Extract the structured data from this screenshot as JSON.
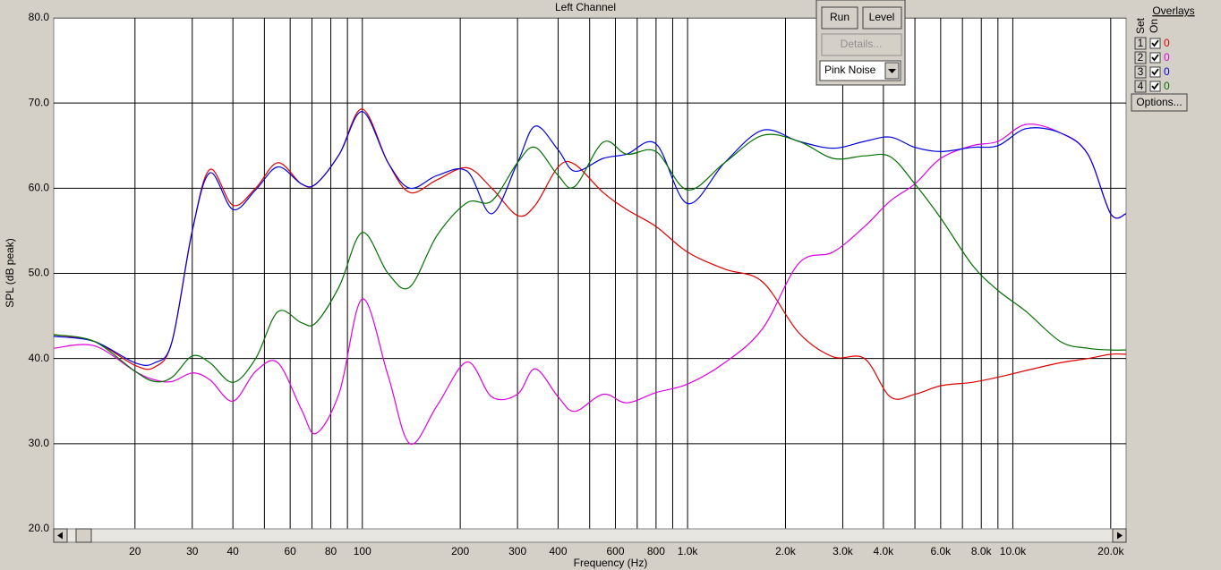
{
  "chart_data": {
    "type": "line",
    "title": "Left Channel",
    "x_label": "Frequency (Hz)",
    "y_label": "SPL (dB peak)",
    "x_scale": "log",
    "grid": true,
    "xlim": [
      11.25,
      22300
    ],
    "ylim": [
      20,
      80
    ],
    "xticks": [
      20,
      30,
      40,
      60,
      80,
      100,
      200,
      300,
      400,
      600,
      800,
      {
        "value": 1000,
        "label": "1.0k"
      },
      {
        "value": 2000,
        "label": "2.0k"
      },
      {
        "value": 3000,
        "label": "3.0k"
      },
      {
        "value": 4000,
        "label": "4.0k"
      },
      {
        "value": 6000,
        "label": "6.0k"
      },
      {
        "value": 8000,
        "label": "8.0k"
      },
      {
        "value": 10000,
        "label": "10.0k"
      },
      {
        "value": 20000,
        "label": "20.0k"
      }
    ],
    "xminor": [
      50,
      70,
      90,
      500,
      700,
      900,
      5000,
      7000,
      9000
    ],
    "yticks": [
      {
        "value": 20,
        "label": "20.0"
      },
      {
        "value": 30,
        "label": "30.0"
      },
      {
        "value": 40,
        "label": "40.0"
      },
      {
        "value": 50,
        "label": "50.0"
      },
      {
        "value": 60,
        "label": "60.0"
      },
      {
        "value": 70,
        "label": "70.0"
      },
      {
        "value": 80,
        "label": "80.0"
      }
    ],
    "x": [
      11.25,
      15,
      20,
      23,
      26,
      30,
      34,
      40,
      47,
      55,
      65,
      72,
      85,
      100,
      120,
      140,
      170,
      210,
      250,
      300,
      340,
      400,
      450,
      550,
      650,
      800,
      1000,
      1300,
      1700,
      2200,
      2800,
      3500,
      4200,
      5000,
      6000,
      7500,
      9000,
      11000,
      14000,
      17000,
      20000,
      22300
    ],
    "series": [
      {
        "color": "#e00000",
        "values": [
          42.8,
          42,
          39.2,
          39,
          42,
          55,
          62.2,
          58,
          60,
          63,
          60.5,
          60.5,
          64,
          69.3,
          63,
          59.5,
          61,
          62.4,
          60,
          56.8,
          58,
          62.5,
          62.8,
          59.5,
          57.5,
          55.5,
          52.5,
          50.5,
          49,
          43,
          40.2,
          40,
          35.5,
          35.8,
          36.8,
          37.2,
          37.8,
          38.6,
          39.5,
          40,
          40.5,
          40.5
        ]
      },
      {
        "color": "#e000e0",
        "values": [
          41.2,
          41.5,
          38.5,
          37.5,
          37.3,
          38.3,
          37.5,
          35,
          38.5,
          39.5,
          34,
          31.2,
          36,
          47,
          38,
          30,
          34.5,
          39.6,
          35.5,
          35.8,
          38.8,
          35.5,
          33.8,
          35.8,
          34.8,
          36,
          37,
          39.5,
          43.5,
          51.2,
          52.5,
          55.5,
          58.5,
          60.5,
          63.5,
          65,
          65.5,
          67.5,
          66.5,
          64,
          57,
          57
        ]
      },
      {
        "color": "#0000e0",
        "values": [
          42.6,
          42,
          39.5,
          39.5,
          42,
          55,
          61.8,
          57.5,
          59.8,
          62.5,
          60.5,
          60.5,
          64,
          69,
          63,
          60,
          61.5,
          62,
          57,
          63,
          67.3,
          64.5,
          62,
          63.5,
          64,
          65.2,
          58.2,
          63,
          66.8,
          65.5,
          64.7,
          65.5,
          66,
          64.8,
          64.3,
          64.8,
          65,
          67,
          66.5,
          64,
          57,
          57
        ]
      },
      {
        "color": "#007000",
        "values": [
          42.8,
          42,
          38.5,
          37.3,
          37.8,
          40.3,
          39.5,
          37.2,
          40,
          45.5,
          44.2,
          44.2,
          48.5,
          54.8,
          50,
          48.4,
          54.5,
          58.3,
          58.5,
          63,
          64.8,
          61.5,
          60.2,
          65.4,
          64,
          64.3,
          59.8,
          63,
          66.2,
          65.5,
          63.5,
          63.8,
          63.7,
          60.5,
          56.5,
          51,
          48,
          45.5,
          42,
          41.2,
          41,
          41
        ]
      }
    ]
  },
  "controls": {
    "run": "Run",
    "level": "Level",
    "details": "Details...",
    "signal": "Pink Noise"
  },
  "overlays": {
    "title": "Overlays",
    "set_label": "Set",
    "on_label": "On",
    "options": "Options...",
    "rows": [
      {
        "set": "1",
        "value": "0"
      },
      {
        "set": "2",
        "value": "0"
      },
      {
        "set": "3",
        "value": "0"
      },
      {
        "set": "4",
        "value": "0"
      }
    ]
  }
}
